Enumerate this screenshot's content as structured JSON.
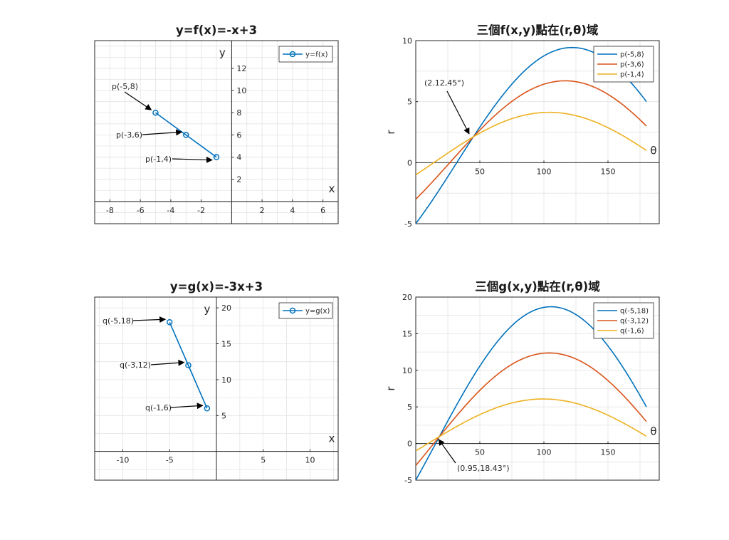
{
  "chart_data": [
    {
      "type": "line",
      "title": "y=f(x)=-x+3",
      "xlabel": "x",
      "ylabel": "y",
      "xlim": [
        -9,
        7
      ],
      "ylim": [
        -2,
        14.5
      ],
      "xticks": [
        -8,
        -6,
        -4,
        -2,
        2,
        4,
        6
      ],
      "yticks": [
        2,
        4,
        6,
        8,
        10,
        12
      ],
      "grid": true,
      "legend_position": "top-right",
      "series": [
        {
          "name": "y=f(x)",
          "color": "#0072BD",
          "marker": "circle",
          "x": [
            -5,
            -3,
            -1
          ],
          "y": [
            8,
            6,
            4
          ]
        }
      ],
      "annotations": [
        {
          "text": "p(-5,8)",
          "x": -5,
          "y": 8
        },
        {
          "text": "p(-3,6)",
          "x": -3,
          "y": 6
        },
        {
          "text": "p(-1,4)",
          "x": -1,
          "y": 4
        }
      ]
    },
    {
      "type": "line",
      "title": "三個f(x,y)點在(r,θ)域",
      "xlabel": "θ",
      "ylabel": "r",
      "xlim": [
        0,
        190
      ],
      "ylim": [
        -5,
        10
      ],
      "xticks": [
        50,
        100,
        150
      ],
      "yticks": [
        -5,
        0,
        5,
        10
      ],
      "grid": true,
      "legend_position": "top-right",
      "curve_degrees": [
        0,
        45,
        90,
        135,
        180
      ],
      "series": [
        {
          "name": "p(-5,8)",
          "color": "#0072BD",
          "r": [
            -5,
            2.12,
            8,
            9.19,
            5
          ]
        },
        {
          "name": "p(-3,6)",
          "color": "#D95319",
          "r": [
            -3,
            2.12,
            6,
            6.36,
            3
          ]
        },
        {
          "name": "p(-1,4)",
          "color": "#EDB120",
          "r": [
            -1,
            2.12,
            4,
            3.54,
            1
          ]
        }
      ],
      "annotations": [
        {
          "text": "(2.12,45°)",
          "x": 45,
          "y": 2.12
        }
      ]
    },
    {
      "type": "line",
      "title": "y=g(x)=-3x+3",
      "xlabel": "x",
      "ylabel": "y",
      "xlim": [
        -13,
        13
      ],
      "ylim": [
        -4,
        21.5
      ],
      "xticks": [
        -10,
        -5,
        5,
        10
      ],
      "yticks": [
        5,
        10,
        15,
        20
      ],
      "grid": true,
      "legend_position": "top-right",
      "series": [
        {
          "name": "y=g(x)",
          "color": "#0072BD",
          "marker": "circle",
          "x": [
            -5,
            -3,
            -1
          ],
          "y": [
            18,
            12,
            6
          ]
        }
      ],
      "annotations": [
        {
          "text": "q(-5,18)",
          "x": -5,
          "y": 18
        },
        {
          "text": "q(-3,12)",
          "x": -3,
          "y": 12
        },
        {
          "text": "q(-1,6)",
          "x": -1,
          "y": 6
        }
      ]
    },
    {
      "type": "line",
      "title": "三個g(x,y)點在(r,θ)域",
      "xlabel": "θ",
      "ylabel": "r",
      "xlim": [
        0,
        190
      ],
      "ylim": [
        -5,
        20
      ],
      "xticks": [
        50,
        100,
        150
      ],
      "yticks": [
        -5,
        0,
        5,
        10,
        15,
        20
      ],
      "grid": true,
      "legend_position": "top-right",
      "curve_degrees": [
        0,
        45,
        90,
        135,
        180
      ],
      "series": [
        {
          "name": "q(-5,18)",
          "color": "#0072BD",
          "r": [
            -5,
            9.19,
            18,
            16.26,
            5
          ]
        },
        {
          "name": "q(-3,12)",
          "color": "#D95319",
          "r": [
            -3,
            6.36,
            12,
            10.61,
            3
          ]
        },
        {
          "name": "q(-1,6)",
          "color": "#EDB120",
          "r": [
            -1,
            3.54,
            6,
            4.95,
            1
          ]
        }
      ],
      "annotations": [
        {
          "text": "(0.95,18.43°)",
          "x": 18.43,
          "y": 0.95
        }
      ]
    }
  ]
}
